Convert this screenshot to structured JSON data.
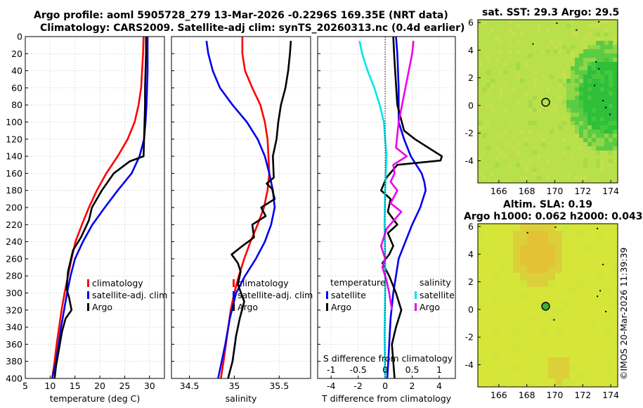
{
  "titles": {
    "line1": "Argo profile: aoml 5905728_279 13-Mar-2026 -0.2296S 169.35E (NRT data)",
    "line2": "Climatology: CARS2009. Satellite-adj clim: synTS_20260313.nc (0.4d earlier)",
    "sst": "sat. SST: 29.3 Argo: 29.5",
    "sla1": "Altim. SLA: 0.19",
    "sla2": "Argo h1000: 0.062 h2000: 0.043"
  },
  "copyright": "©IMOS 20-Mar-2026 11:39:39",
  "colors": {
    "climatology": "#ff0000",
    "satellite": "#0000ee",
    "argo": "#000000",
    "salinity_satellite": "#00e5ee",
    "salinity_argo": "#ee00ee",
    "grid": "#d9d9d9",
    "sst_field": "#b7e04a",
    "sst_warm": "#34c23a",
    "sla_field": "#d6e638",
    "sla_warm": "#e0c830"
  },
  "chart_data": [
    {
      "id": "temperature",
      "type": "line",
      "xlabel": "temperature (deg C)",
      "ylabel": "",
      "xlim": [
        5,
        33
      ],
      "ylim": [
        400,
        0
      ],
      "xticks": [
        5,
        10,
        15,
        20,
        25,
        30
      ],
      "yticks": [
        0,
        20,
        40,
        60,
        80,
        100,
        120,
        140,
        160,
        180,
        200,
        220,
        240,
        260,
        280,
        300,
        320,
        340,
        360,
        380,
        400
      ],
      "legend": [
        "climatology",
        "satellite-adj. clim",
        "Argo"
      ],
      "series": [
        {
          "name": "climatology",
          "color": "#ff0000",
          "x": [
            28.8,
            28.7,
            28.3,
            27.8,
            27.0,
            25.6,
            23.6,
            21.3,
            19.4,
            17.8,
            16.4,
            15.1,
            14.3,
            13.6,
            12.9,
            12.3,
            11.8,
            11.3,
            10.9,
            10.4
          ],
          "y": [
            0,
            20,
            60,
            80,
            100,
            120,
            140,
            160,
            180,
            200,
            220,
            240,
            260,
            280,
            300,
            320,
            340,
            360,
            380,
            400
          ]
        },
        {
          "name": "satellite-adj. clim",
          "color": "#0000ee",
          "x": [
            29.6,
            29.6,
            29.4,
            29.2,
            28.9,
            28.0,
            26.4,
            23.6,
            21.0,
            18.5,
            16.6,
            15.0,
            14.1,
            13.4,
            12.8,
            12.2,
            11.7,
            11.2,
            10.8,
            10.4
          ],
          "y": [
            0,
            40,
            80,
            100,
            120,
            140,
            160,
            180,
            200,
            220,
            240,
            260,
            280,
            300,
            320,
            340,
            360,
            380,
            390,
            400
          ]
        },
        {
          "name": "Argo",
          "color": "#000000",
          "x": [
            29.3,
            29.3,
            29.2,
            29.1,
            29.1,
            29.0,
            28.9,
            28.8,
            26.0,
            22.8,
            20.4,
            18.4,
            17.8,
            16.2,
            14.6,
            13.6,
            13.3,
            13.8,
            14.3,
            13.1,
            12.4,
            11.8,
            11.2,
            10.9
          ],
          "y": [
            0,
            20,
            40,
            60,
            80,
            100,
            120,
            140,
            146,
            160,
            180,
            200,
            215,
            235,
            250,
            275,
            295,
            305,
            320,
            330,
            345,
            365,
            385,
            400
          ]
        }
      ]
    },
    {
      "id": "salinity",
      "type": "line",
      "xlabel": "salinity",
      "xlim": [
        34.3,
        35.85
      ],
      "ylim": [
        400,
        0
      ],
      "xticks": [
        34.5,
        35,
        35.5
      ],
      "legend": [
        "climatology",
        "satellite-adj. clim",
        "Argo"
      ],
      "series": [
        {
          "name": "climatology",
          "color": "#ff0000",
          "x": [
            35.09,
            35.09,
            35.12,
            35.2,
            35.29,
            35.34,
            35.37,
            35.38,
            35.39,
            35.37,
            35.33,
            35.26,
            35.18,
            35.11,
            35.05,
            35.0,
            34.96,
            34.92,
            34.88,
            34.85
          ],
          "y": [
            0,
            20,
            40,
            60,
            80,
            100,
            120,
            140,
            160,
            180,
            200,
            220,
            240,
            260,
            280,
            300,
            320,
            350,
            380,
            400
          ]
        },
        {
          "name": "satellite-adj. clim",
          "color": "#0000ee",
          "x": [
            34.69,
            34.71,
            34.76,
            34.84,
            34.98,
            35.14,
            35.26,
            35.34,
            35.39,
            35.43,
            35.45,
            35.41,
            35.34,
            35.24,
            35.12,
            35.02,
            34.95,
            34.9,
            34.86,
            34.82
          ],
          "y": [
            5,
            20,
            40,
            60,
            80,
            100,
            120,
            140,
            160,
            180,
            200,
            220,
            240,
            260,
            280,
            300,
            330,
            360,
            380,
            400
          ]
        },
        {
          "name": "Argo",
          "color": "#000000",
          "x": [
            35.63,
            35.62,
            35.6,
            35.57,
            35.52,
            35.49,
            35.47,
            35.43,
            35.44,
            35.36,
            35.42,
            35.45,
            35.3,
            35.35,
            35.2,
            35.22,
            35.09,
            34.97,
            35.04,
            35.07,
            35.04,
            35.11,
            35.06,
            35.02,
            34.98,
            34.93
          ],
          "y": [
            5,
            20,
            40,
            60,
            80,
            100,
            120,
            140,
            165,
            172,
            178,
            190,
            200,
            210,
            220,
            235,
            245,
            255,
            265,
            275,
            290,
            310,
            330,
            350,
            380,
            400
          ]
        }
      ]
    },
    {
      "id": "difference",
      "type": "line",
      "xlabel": "T difference from climatology",
      "secondary_xlabel": "S difference from climatology",
      "xlim": [
        -5,
        5.2
      ],
      "ylim": [
        400,
        0
      ],
      "xticks": [
        -4,
        -2,
        0,
        2,
        4
      ],
      "secondary_xticks": [
        "-1",
        "-0.5",
        "0",
        "0.5",
        "1"
      ],
      "legend_left_title": "temperature",
      "legend_right_title": "salinity",
      "legend": [
        "satellite",
        "Argo",
        "satellite",
        "Argo"
      ],
      "series": [
        {
          "name": "temperature satellite",
          "color": "#0000ee",
          "x": [
            0.8,
            0.9,
            1.0,
            1.0,
            1.4,
            1.9,
            2.7,
            2.9,
            3.0,
            2.6,
            2.0,
            1.5,
            1.0,
            0.8,
            0.6,
            0.4,
            0.3,
            0.2,
            0.15
          ],
          "y": [
            0,
            20,
            60,
            100,
            120,
            140,
            160,
            170,
            180,
            200,
            220,
            240,
            260,
            280,
            300,
            330,
            360,
            390,
            400
          ]
        },
        {
          "name": "temperature Argo",
          "color": "#000000",
          "x": [
            0.6,
            0.7,
            0.9,
            1.4,
            2.2,
            3.2,
            4.2,
            4.1,
            0.9,
            0.1,
            -0.3,
            0.4,
            0.2,
            0.9,
            0.2,
            0.6,
            0.3,
            -0.2,
            0.3,
            0.8,
            1.2,
            0.8,
            0.5,
            0.6,
            0.7
          ],
          "y": [
            0,
            30,
            80,
            110,
            120,
            130,
            140,
            145,
            150,
            165,
            180,
            190,
            205,
            220,
            230,
            245,
            255,
            265,
            280,
            300,
            320,
            340,
            360,
            380,
            400
          ]
        },
        {
          "name": "salinity satellite",
          "color": "#00e5ee",
          "x": [
            -1.9,
            -1.7,
            -1.3,
            -0.8,
            -0.4,
            -0.1,
            0.0,
            0.1,
            0.05,
            0.0,
            -0.05,
            0.0,
            0.0,
            -0.05,
            0.0
          ],
          "y": [
            5,
            20,
            40,
            60,
            80,
            100,
            120,
            140,
            160,
            180,
            220,
            260,
            300,
            350,
            400
          ]
        },
        {
          "name": "salinity Argo",
          "color": "#ee00ee",
          "x": [
            2.1,
            2.0,
            1.5,
            1.0,
            0.8,
            1.6,
            0.6,
            0.7,
            0.4,
            0.9,
            0.4,
            1.2,
            0.1,
            -0.3,
            0.0,
            -0.2,
            0.1,
            0.3,
            0.5
          ],
          "y": [
            5,
            20,
            60,
            100,
            130,
            140,
            150,
            160,
            170,
            180,
            195,
            205,
            225,
            245,
            260,
            270,
            285,
            300,
            320
          ]
        }
      ]
    },
    {
      "id": "sst-map",
      "type": "heatmap",
      "title": "sat. SST: 29.3 Argo: 29.5",
      "xticks": [
        166,
        168,
        170,
        172,
        174
      ],
      "yticks": [
        6,
        4,
        2,
        0,
        -2,
        -4
      ],
      "xlim": [
        164.5,
        174.5
      ],
      "ylim": [
        -5.6,
        6.2
      ],
      "float_position": [
        169.35,
        0.23
      ]
    },
    {
      "id": "sla-map",
      "type": "heatmap",
      "title": "Altim. SLA: 0.19",
      "xticks": [
        166,
        168,
        170,
        172,
        174
      ],
      "yticks": [
        6,
        4,
        2,
        0,
        -2,
        -4
      ],
      "xlim": [
        164.5,
        174.5
      ],
      "ylim": [
        -5.6,
        6.2
      ],
      "float_position": [
        169.35,
        0.23
      ]
    }
  ]
}
